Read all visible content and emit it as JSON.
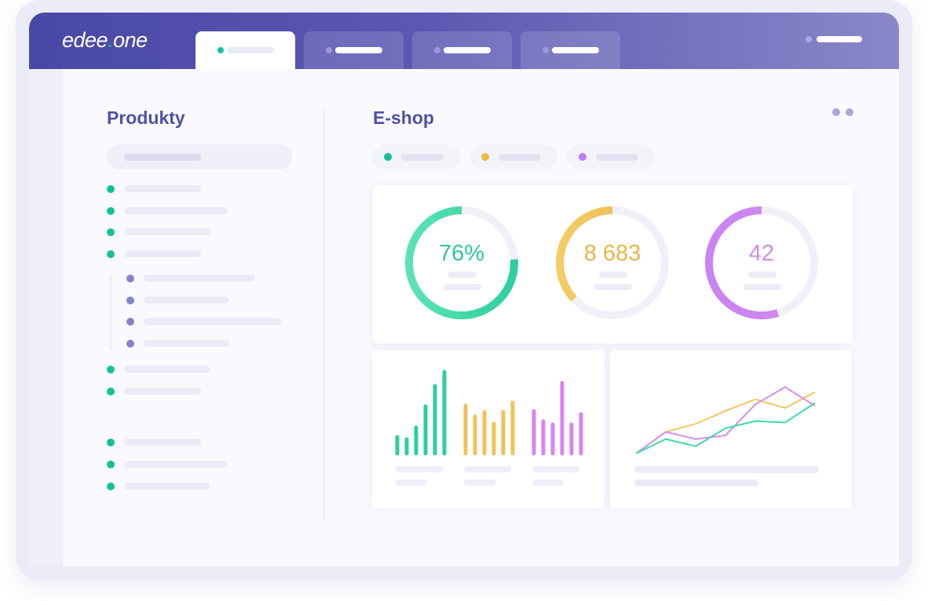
{
  "app": {
    "logo_main": "edee",
    "logo_dot": ".",
    "logo_suffix": "one"
  },
  "header": {
    "tabs": [
      {
        "active": true
      },
      {
        "active": false
      },
      {
        "active": false
      },
      {
        "active": false
      }
    ]
  },
  "left_panel": {
    "title": "Produkty"
  },
  "right_panel": {
    "title": "E-shop",
    "filters": [
      {
        "color": "#12c197"
      },
      {
        "color": "#ecb949"
      },
      {
        "color": "#c07cf0"
      }
    ]
  },
  "rings": [
    {
      "value": "76%",
      "fraction": 0.76,
      "color": "#2dcfa0",
      "color2": "#5be3b0",
      "text_color": "#2cc79a"
    },
    {
      "value": "8 683",
      "fraction": 0.37,
      "color": "#eab446",
      "color2": "#f4cc65",
      "text_color": "#e9b545"
    },
    {
      "value": "42",
      "fraction": 0.55,
      "color": "#d68cf0",
      "color2": "#c884f2",
      "text_color": "#cf8cec"
    }
  ],
  "colors": {
    "accent": "#5150a8",
    "green": "#12c197",
    "yellow": "#ecb949",
    "purple": "#c07cf0",
    "sublist": "#8583cc"
  },
  "chart_data": [
    {
      "type": "bar",
      "series": [
        {
          "color": "#2ccf9c",
          "values": [
            21,
            18,
            33,
            60,
            86,
            104
          ]
        },
        {
          "color": "#f0c25a",
          "values": [
            61,
            47,
            53,
            38,
            53,
            65
          ]
        },
        {
          "color": "#d884f0",
          "values": [
            54,
            41,
            37,
            90,
            37,
            50
          ]
        }
      ]
    },
    {
      "type": "line",
      "x": [
        1,
        2,
        3,
        4,
        5,
        6,
        7
      ],
      "series": [
        {
          "color": "#f2c65c",
          "values": [
            0,
            30,
            41,
            59,
            75,
            63,
            85
          ]
        },
        {
          "color": "#d48cf2",
          "values": [
            0,
            30,
            20,
            25,
            68,
            92,
            66
          ]
        },
        {
          "color": "#3fd9a8",
          "values": [
            0,
            20,
            10,
            35,
            45,
            43,
            70
          ]
        }
      ]
    }
  ]
}
